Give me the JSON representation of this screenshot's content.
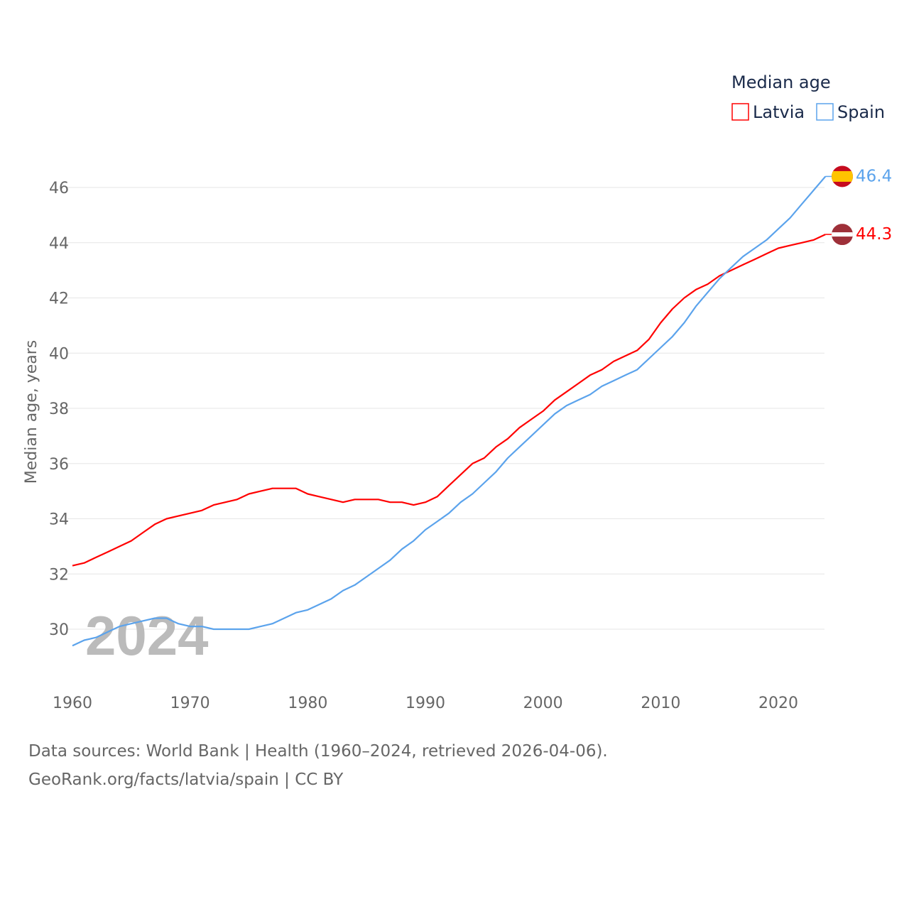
{
  "chart_data": {
    "type": "line",
    "title": "",
    "legend_title": "Median age",
    "legend_placement": "top-right",
    "xlabel": "",
    "ylabel": "Median age, years",
    "xlim": [
      1960,
      2024
    ],
    "ylim": [
      29,
      47
    ],
    "x_ticks": [
      1960,
      1970,
      1980,
      1990,
      2000,
      2010,
      2020
    ],
    "y_ticks": [
      30,
      32,
      34,
      36,
      38,
      40,
      42,
      44,
      46
    ],
    "grid": true,
    "year_watermark": "2024",
    "x": [
      1960,
      1961,
      1962,
      1963,
      1964,
      1965,
      1966,
      1967,
      1968,
      1969,
      1970,
      1971,
      1972,
      1973,
      1974,
      1975,
      1976,
      1977,
      1978,
      1979,
      1980,
      1981,
      1982,
      1983,
      1984,
      1985,
      1986,
      1987,
      1988,
      1989,
      1990,
      1991,
      1992,
      1993,
      1994,
      1995,
      1996,
      1997,
      1998,
      1999,
      2000,
      2001,
      2002,
      2003,
      2004,
      2005,
      2006,
      2007,
      2008,
      2009,
      2010,
      2011,
      2012,
      2013,
      2014,
      2015,
      2016,
      2017,
      2018,
      2019,
      2020,
      2021,
      2022,
      2023,
      2024
    ],
    "series": [
      {
        "name": "Latvia",
        "color": "#ff0000",
        "end_label": "44.3",
        "values": [
          32.3,
          32.4,
          32.6,
          32.8,
          33.0,
          33.2,
          33.5,
          33.8,
          34.0,
          34.1,
          34.2,
          34.3,
          34.5,
          34.6,
          34.7,
          34.9,
          35.0,
          35.1,
          35.1,
          35.1,
          34.9,
          34.8,
          34.7,
          34.6,
          34.7,
          34.7,
          34.7,
          34.6,
          34.6,
          34.5,
          34.6,
          34.8,
          35.2,
          35.6,
          36.0,
          36.2,
          36.6,
          36.9,
          37.3,
          37.6,
          37.9,
          38.3,
          38.6,
          38.9,
          39.2,
          39.4,
          39.7,
          39.9,
          40.1,
          40.5,
          41.1,
          41.6,
          42.0,
          42.3,
          42.5,
          42.8,
          43.0,
          43.2,
          43.4,
          43.6,
          43.8,
          43.9,
          44.0,
          44.1,
          44.3
        ]
      },
      {
        "name": "Spain",
        "color": "#5ba3ec",
        "end_label": "46.4",
        "values": [
          29.4,
          29.6,
          29.7,
          29.9,
          30.1,
          30.2,
          30.3,
          30.4,
          30.4,
          30.2,
          30.1,
          30.1,
          30.0,
          30.0,
          30.0,
          30.0,
          30.1,
          30.2,
          30.4,
          30.6,
          30.7,
          30.9,
          31.1,
          31.4,
          31.6,
          31.9,
          32.2,
          32.5,
          32.9,
          33.2,
          33.6,
          33.9,
          34.2,
          34.6,
          34.9,
          35.3,
          35.7,
          36.2,
          36.6,
          37.0,
          37.4,
          37.8,
          38.1,
          38.3,
          38.5,
          38.8,
          39.0,
          39.2,
          39.4,
          39.8,
          40.2,
          40.6,
          41.1,
          41.7,
          42.2,
          42.7,
          43.1,
          43.5,
          43.8,
          44.1,
          44.5,
          44.9,
          45.4,
          45.9,
          46.4
        ]
      }
    ]
  },
  "footer": {
    "line1": "Data sources: World Bank | Health (1960–2024, retrieved 2026-04-06).",
    "line2": "GeoRank.org/facts/latvia/spain | CC BY"
  }
}
